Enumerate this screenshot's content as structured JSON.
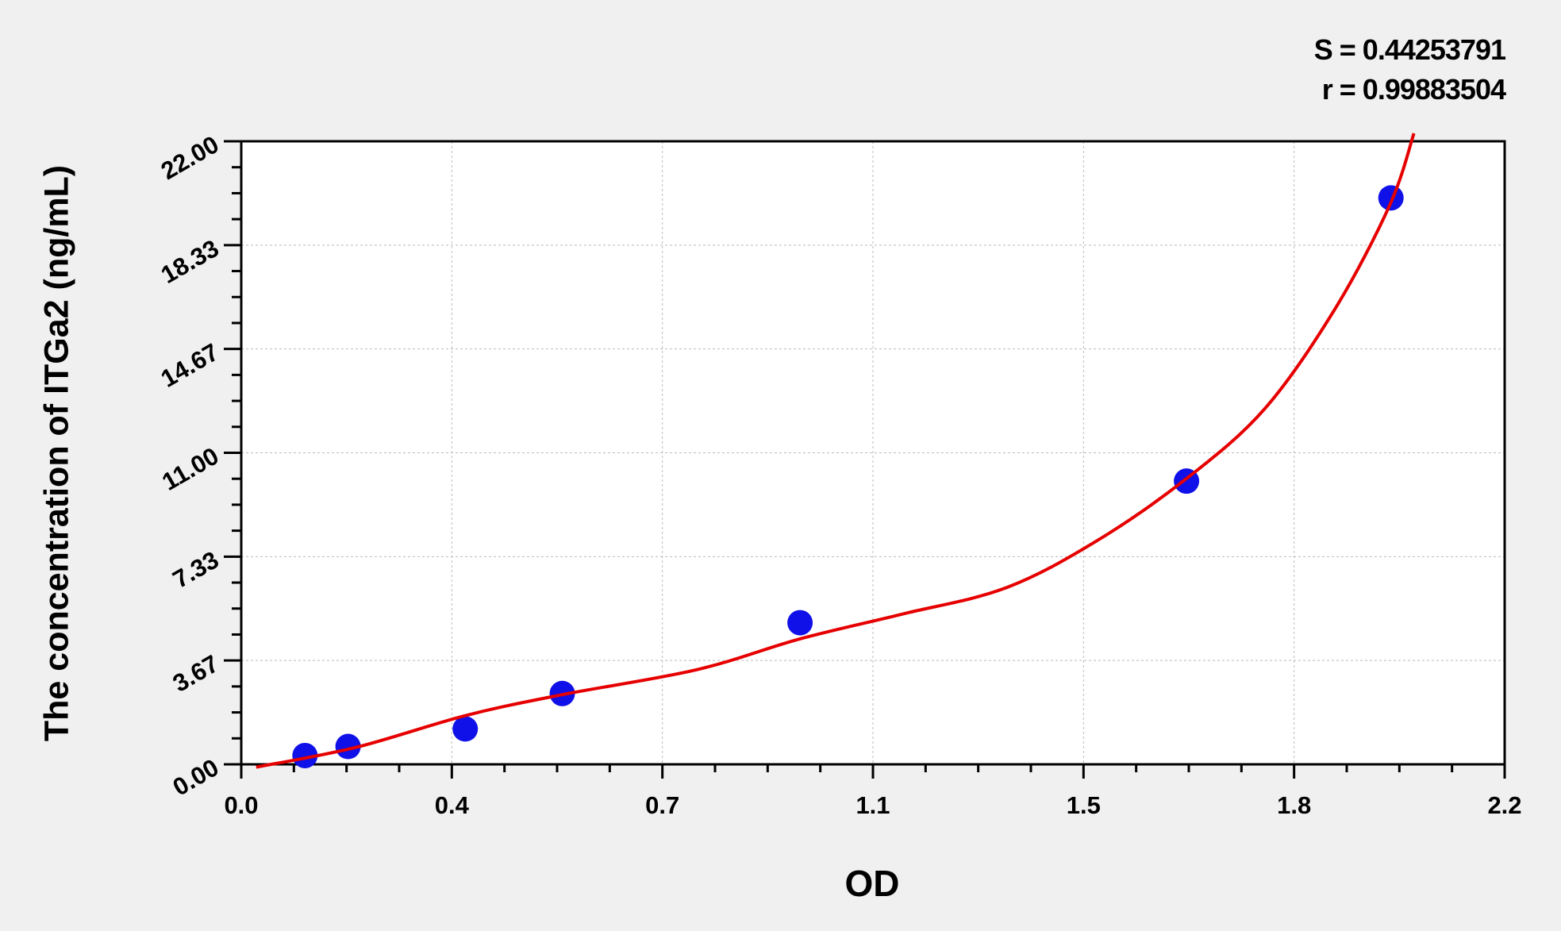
{
  "chart_data": {
    "type": "scatter",
    "xlabel": "OD",
    "ylabel": "The concentration of ITGa2 (ng/mL)",
    "xlim": [
      0,
      2.2
    ],
    "ylim": [
      0,
      22
    ],
    "x_ticks": [
      "0.0",
      "0.4",
      "0.7",
      "1.1",
      "1.5",
      "1.8",
      "2.2"
    ],
    "y_ticks": [
      "0.00",
      "3.67",
      "7.33",
      "11.00",
      "14.67",
      "18.33",
      "22.00"
    ],
    "grid": true,
    "annotations": {
      "S": "S = 0.44253791",
      "r": "r = 0.99883504"
    },
    "points": {
      "x": [
        0.111,
        0.186,
        0.39,
        0.559,
        0.973,
        1.646,
        2.002
      ],
      "y": [
        0.31,
        0.63,
        1.25,
        2.5,
        5,
        10,
        20
      ],
      "color": "#1010e8"
    },
    "fit_curve": {
      "x": [
        0.026,
        0.2,
        0.39,
        0.559,
        0.793,
        0.973,
        1.15,
        1.33,
        1.488,
        1.646,
        1.782,
        1.904,
        2.0,
        2.042
      ],
      "y": [
        -0.1,
        0.6,
        1.72,
        2.46,
        3.34,
        4.43,
        5.3,
        6.22,
        7.87,
        10.09,
        12.55,
        16.06,
        19.75,
        22.28
      ],
      "color": "#e60000"
    }
  }
}
